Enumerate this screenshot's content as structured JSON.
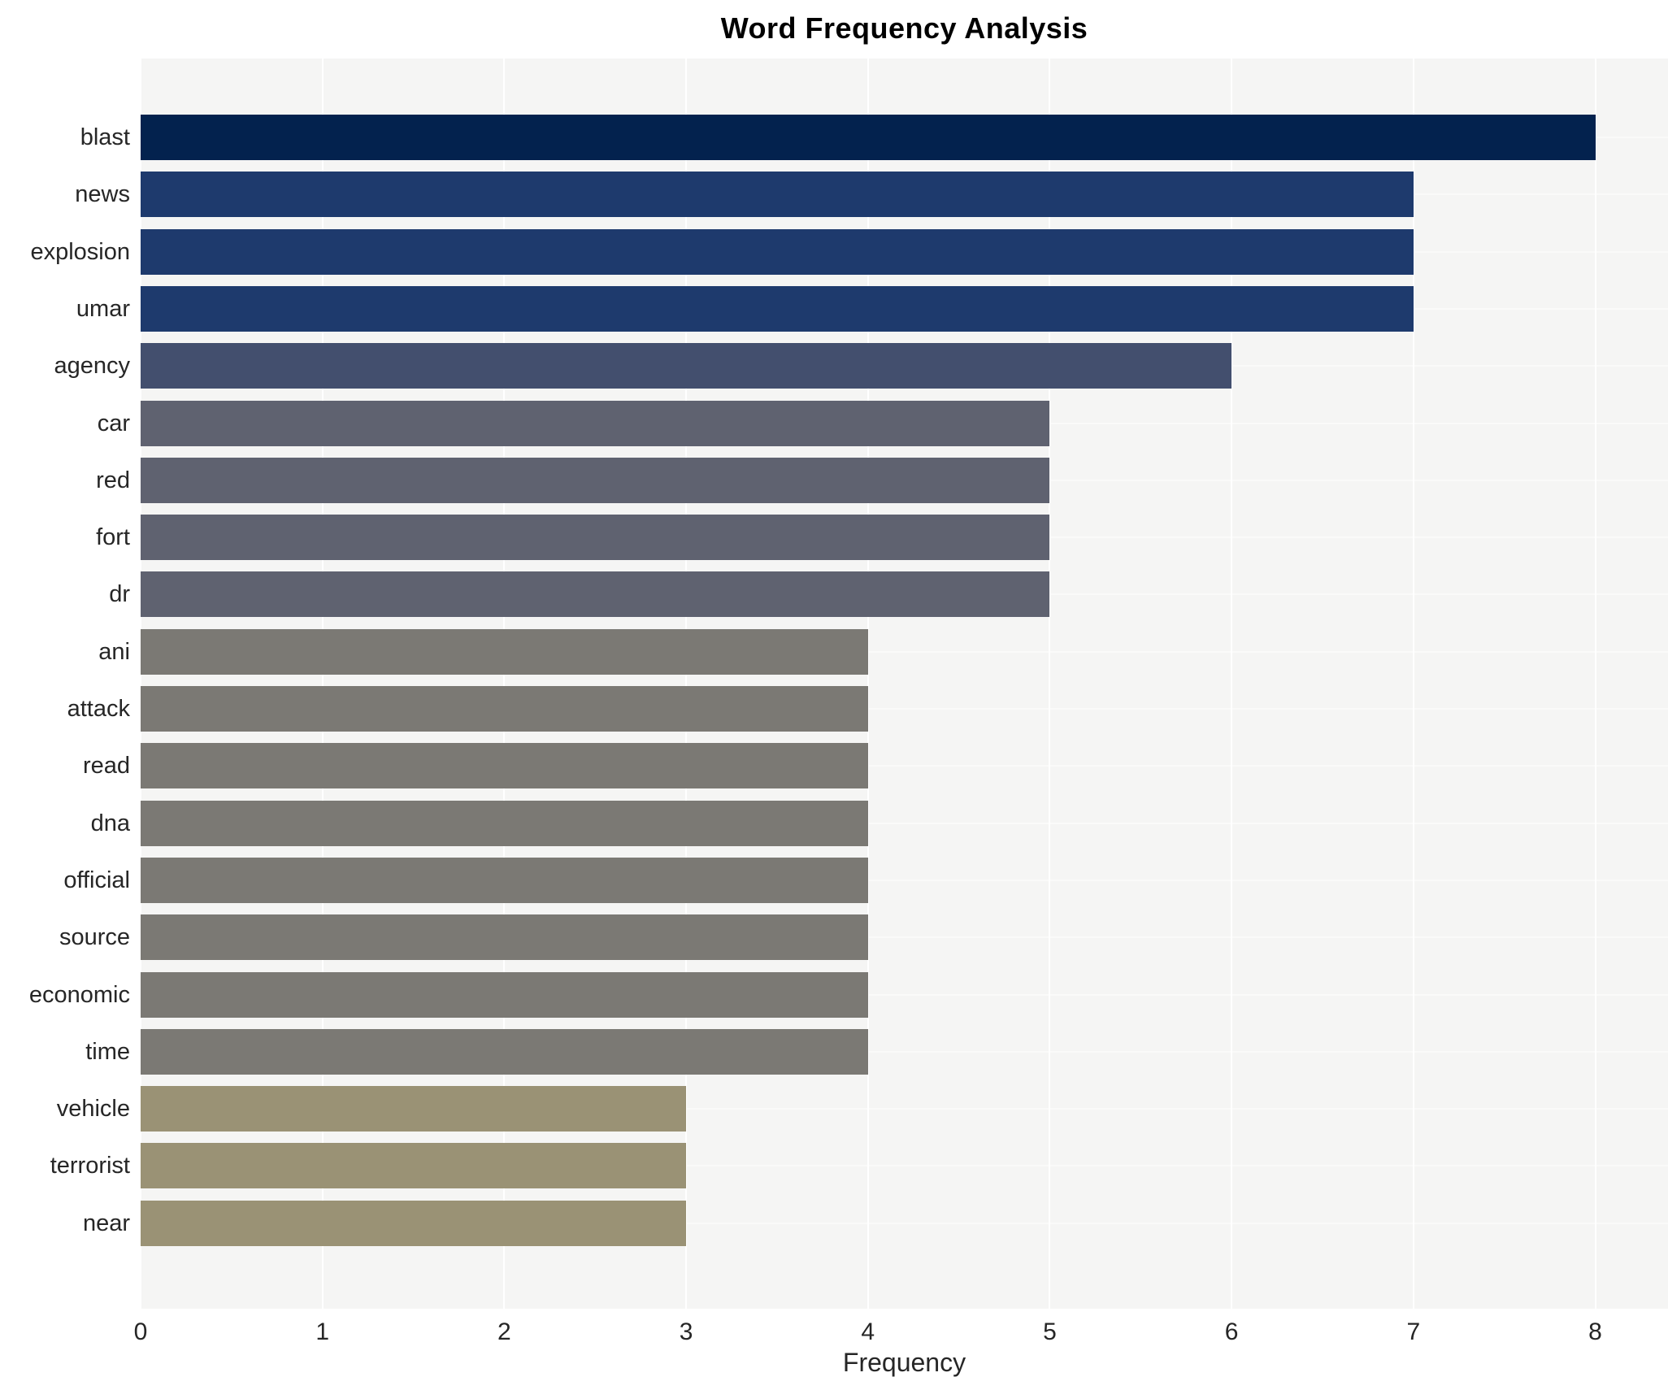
{
  "chart": {
    "title": "Word Frequency Analysis",
    "xlabel": "Frequency"
  },
  "chart_data": {
    "type": "bar",
    "orientation": "horizontal",
    "title": "Word Frequency Analysis",
    "xlabel": "Frequency",
    "ylabel": "",
    "categories": [
      "blast",
      "news",
      "explosion",
      "umar",
      "agency",
      "car",
      "red",
      "fort",
      "dr",
      "ani",
      "attack",
      "read",
      "dna",
      "official",
      "source",
      "economic",
      "time",
      "vehicle",
      "terrorist",
      "near"
    ],
    "values": [
      8,
      7,
      7,
      7,
      6,
      5,
      5,
      5,
      5,
      4,
      4,
      4,
      4,
      4,
      4,
      4,
      4,
      3,
      3,
      3
    ],
    "bar_colors": [
      "#03224e",
      "#1e3a6d",
      "#1e3a6d",
      "#1e3a6d",
      "#434f6e",
      "#5f6270",
      "#5f6270",
      "#5f6270",
      "#5f6270",
      "#7b7974",
      "#7b7974",
      "#7b7974",
      "#7b7974",
      "#7b7974",
      "#7b7974",
      "#7b7974",
      "#7b7974",
      "#9a9275",
      "#9a9275",
      "#9a9275"
    ],
    "xticks": [
      "0",
      "1",
      "2",
      "3",
      "4",
      "5",
      "6",
      "7",
      "8"
    ],
    "xlim": [
      0,
      8.4
    ],
    "grid": true,
    "legend": "none",
    "plot_background": "#f5f5f4",
    "gridline_color": "#ffffff",
    "title_color": "#000000",
    "tick_label_color": "#262626"
  }
}
